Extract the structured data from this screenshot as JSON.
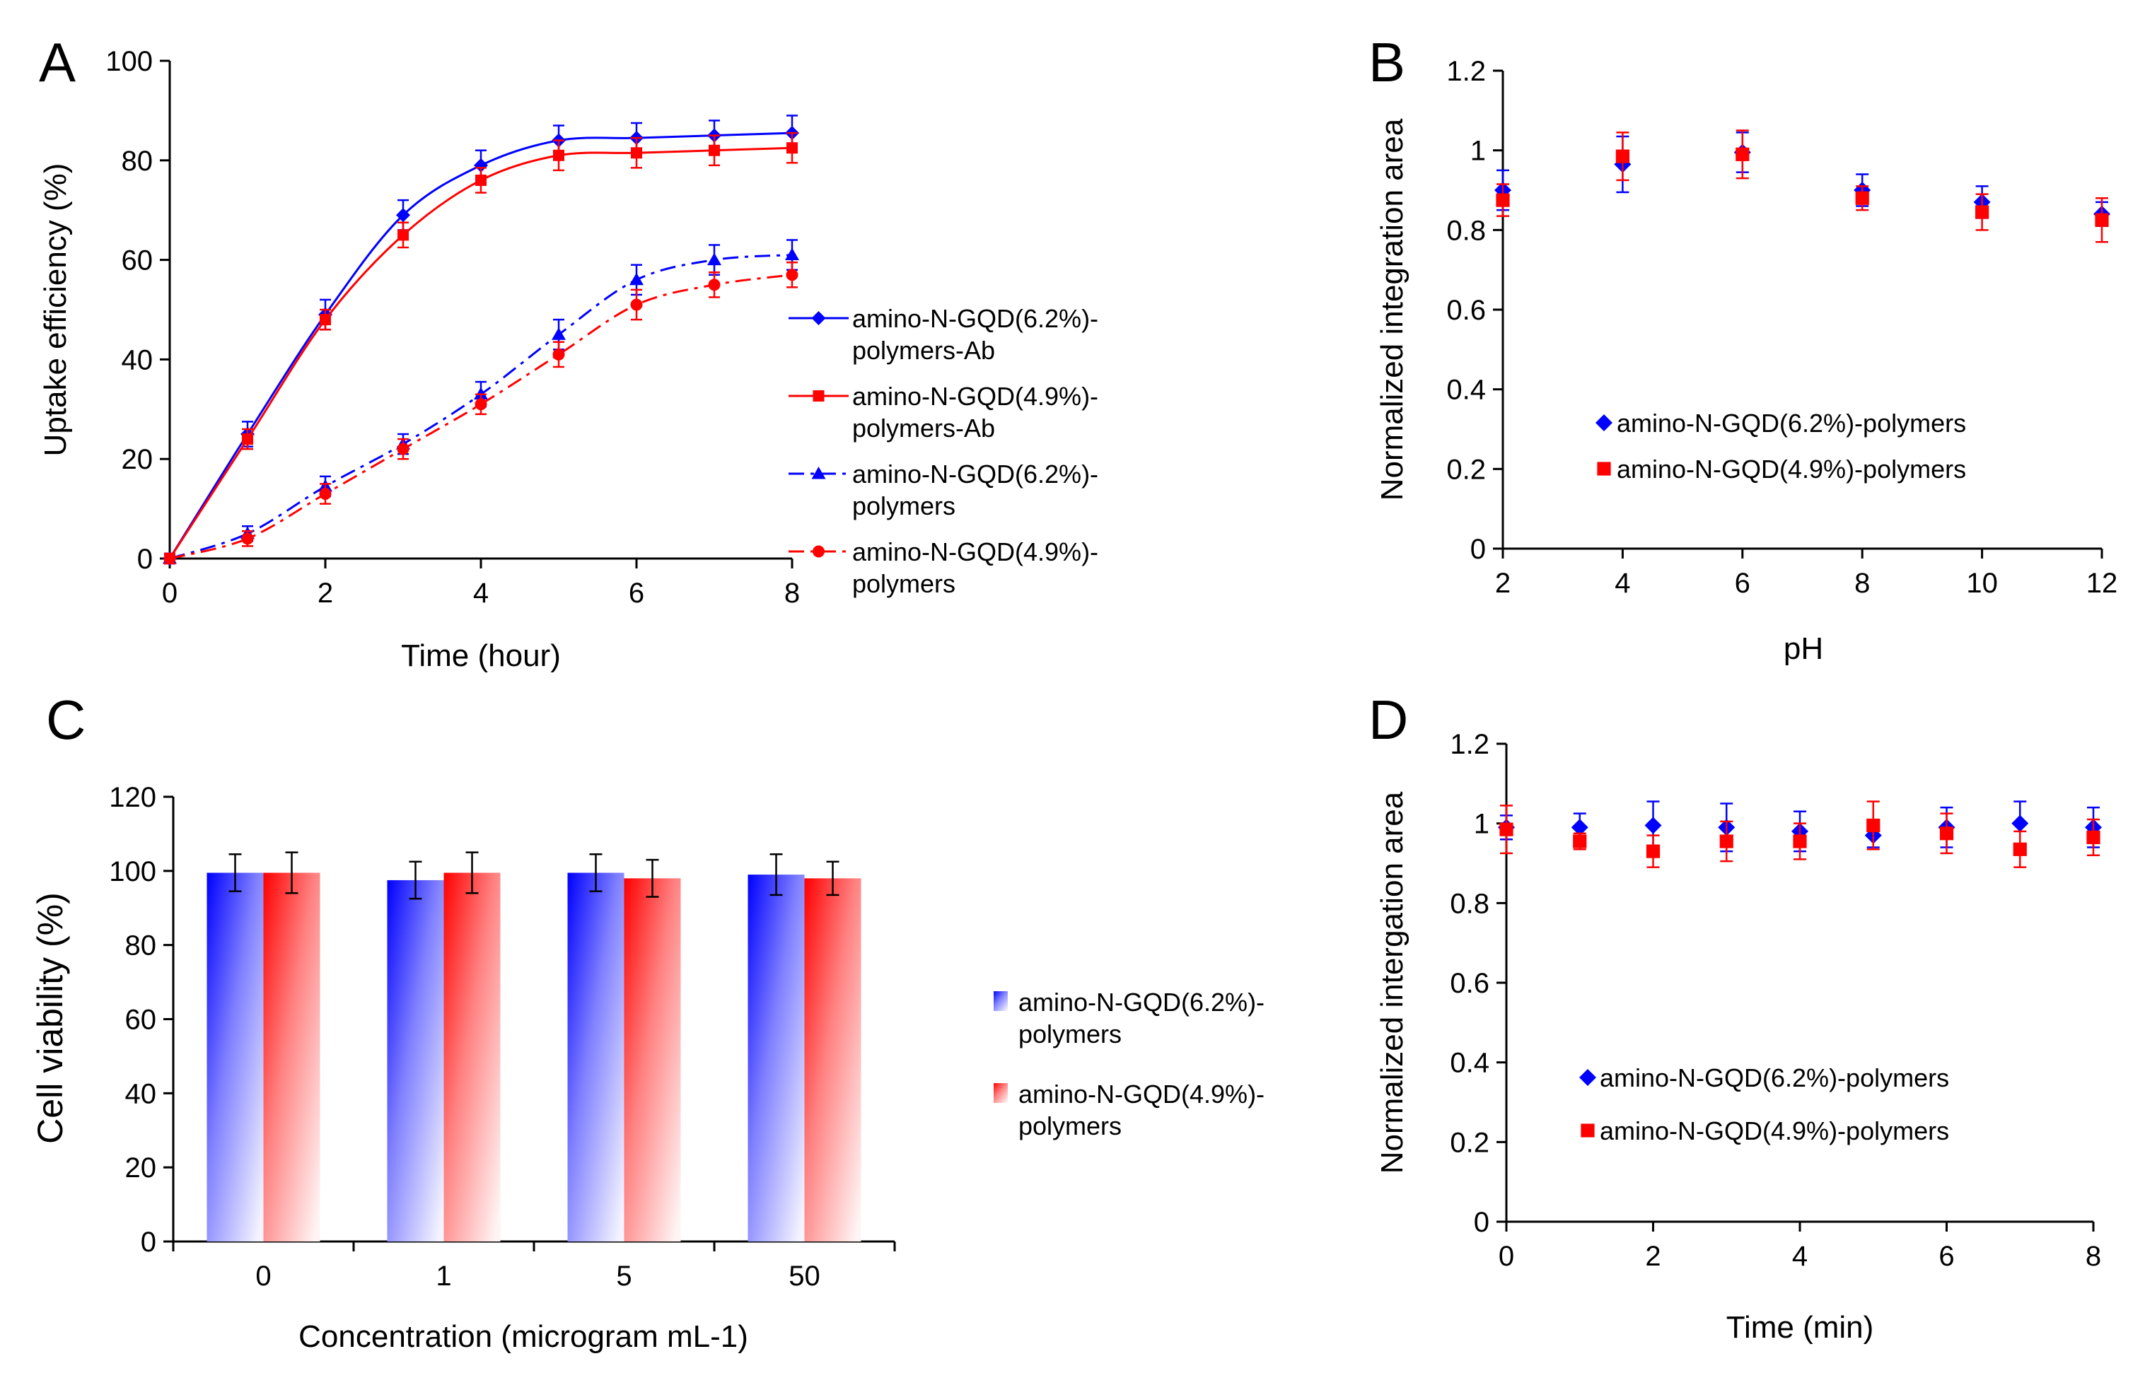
{
  "panels": {
    "A": {
      "letter": "A"
    },
    "B": {
      "letter": "B"
    },
    "C": {
      "letter": "C"
    },
    "D": {
      "letter": "D"
    }
  },
  "chart_data": [
    {
      "id": "A",
      "type": "line",
      "xlabel": "Time (hour)",
      "ylabel": "Uptake efficiency (%)",
      "xlim": [
        0,
        8
      ],
      "ylim": [
        0,
        100
      ],
      "xticks": [
        0,
        2,
        4,
        6,
        8
      ],
      "yticks": [
        0,
        20,
        40,
        60,
        80,
        100
      ],
      "x": [
        0,
        1,
        2,
        3,
        4,
        5,
        6,
        7,
        8
      ],
      "series": [
        {
          "name": "amino-N-GQD(6.2%)-polymers-Ab",
          "legend_lines": [
            "amino-N-GQD(6.2%)-",
            "polymers-Ab"
          ],
          "color": "#0000ff",
          "marker": "diamond",
          "line": "solid",
          "values": [
            0,
            25,
            49,
            69,
            79,
            84,
            84.5,
            85,
            85.5
          ],
          "errors": [
            1,
            2.5,
            3,
            3,
            3,
            3,
            3,
            3,
            3.5
          ]
        },
        {
          "name": "amino-N-GQD(4.9%)-polymers-Ab",
          "legend_lines": [
            "amino-N-GQD(4.9%)-",
            "polymers-Ab"
          ],
          "color": "#ff0000",
          "marker": "square",
          "line": "solid",
          "values": [
            0,
            24,
            48,
            65,
            76,
            81,
            81.5,
            82,
            82.5
          ],
          "errors": [
            1,
            2,
            2,
            2.5,
            2.5,
            3,
            3,
            3,
            3
          ]
        },
        {
          "name": "amino-N-GQD(6.2%)-polymers",
          "legend_lines": [
            "amino-N-GQD(6.2%)-",
            "polymers"
          ],
          "color": "#0000ff",
          "marker": "triangle",
          "line": "dashdot",
          "values": [
            0,
            5,
            14.5,
            23,
            33,
            45,
            56,
            60,
            61
          ],
          "errors": [
            1,
            1.5,
            2,
            2,
            2.5,
            3,
            3,
            3,
            3
          ]
        },
        {
          "name": "amino-N-GQD(4.9%)-polymers",
          "legend_lines": [
            "amino-N-GQD(4.9%)-",
            "polymers"
          ],
          "color": "#ff0000",
          "marker": "circle",
          "line": "dashdot",
          "values": [
            0,
            4,
            13,
            22,
            31,
            41,
            51,
            55,
            57
          ],
          "errors": [
            1,
            1.5,
            2,
            2,
            2,
            2.5,
            3,
            2.5,
            2.5
          ]
        }
      ]
    },
    {
      "id": "B",
      "type": "scatter",
      "xlabel": "pH",
      "ylabel": "Normalized integration area",
      "xlim": [
        2,
        12
      ],
      "ylim": [
        0,
        1.2
      ],
      "xticks": [
        2,
        4,
        6,
        8,
        10,
        12
      ],
      "yticks": [
        "0",
        "0.2",
        "0.4",
        "0.6",
        "0.8",
        "1",
        "1.2"
      ],
      "x": [
        2,
        4,
        6,
        8,
        10,
        12
      ],
      "series": [
        {
          "name": "amino-N-GQD(6.2%)-polymers",
          "color": "#0000ff",
          "marker": "diamond",
          "values": [
            0.9,
            0.965,
            0.995,
            0.9,
            0.87,
            0.84
          ],
          "errors": [
            0.05,
            0.07,
            0.05,
            0.04,
            0.04,
            0.03
          ]
        },
        {
          "name": "amino-N-GQD(4.9%)-polymers",
          "color": "#ff0000",
          "marker": "square",
          "values": [
            0.875,
            0.985,
            0.99,
            0.88,
            0.845,
            0.825
          ],
          "errors": [
            0.04,
            0.06,
            0.06,
            0.03,
            0.045,
            0.055
          ]
        }
      ]
    },
    {
      "id": "C",
      "type": "bar",
      "xlabel": "Concentration (microgram mL-1)",
      "ylabel": "Cell viability (%)",
      "ylim": [
        0,
        120
      ],
      "yticks": [
        0,
        20,
        40,
        60,
        80,
        100,
        120
      ],
      "categories": [
        "0",
        "1",
        "5",
        "50"
      ],
      "series": [
        {
          "name": "amino-N-GQD(6.2%)-polymers",
          "legend_lines": [
            "amino-N-GQD(6.2%)-",
            "polymers"
          ],
          "color": "#0000ff",
          "values": [
            99.5,
            97.5,
            99.5,
            99
          ],
          "errors": [
            5,
            5,
            5,
            5.5
          ]
        },
        {
          "name": "amino-N-GQD(4.9%)-polymers",
          "legend_lines": [
            "amino-N-GQD(4.9%)-",
            "polymers"
          ],
          "color": "#ff0000",
          "values": [
            99.5,
            99.5,
            98,
            98
          ],
          "errors": [
            5.5,
            5.5,
            5,
            4.5
          ]
        }
      ]
    },
    {
      "id": "D",
      "type": "scatter",
      "xlabel": "Time (min)",
      "ylabel": "Normalized intergation area",
      "xlim": [
        0,
        8
      ],
      "ylim": [
        0,
        1.2
      ],
      "xticks": [
        0,
        2,
        4,
        6,
        8
      ],
      "yticks": [
        "0",
        "0.2",
        "0.4",
        "0.6",
        "0.8",
        "1",
        "1.2"
      ],
      "x": [
        0,
        1,
        2,
        3,
        4,
        5,
        6,
        7,
        8
      ],
      "series": [
        {
          "name": "amino-N-GQD(6.2%)-polymers",
          "color": "#0000ff",
          "marker": "diamond",
          "values": [
            0.99,
            0.99,
            0.995,
            0.99,
            0.98,
            0.97,
            0.99,
            1.0,
            0.99
          ],
          "errors": [
            0.03,
            0.035,
            0.06,
            0.06,
            0.05,
            0.03,
            0.05,
            0.055,
            0.05
          ]
        },
        {
          "name": "amino-N-GQD(4.9%)-polymers",
          "color": "#ff0000",
          "marker": "square",
          "values": [
            0.985,
            0.955,
            0.93,
            0.955,
            0.955,
            0.995,
            0.975,
            0.935,
            0.965
          ],
          "errors": [
            0.06,
            0.02,
            0.04,
            0.05,
            0.045,
            0.06,
            0.05,
            0.045,
            0.045
          ]
        }
      ]
    }
  ]
}
